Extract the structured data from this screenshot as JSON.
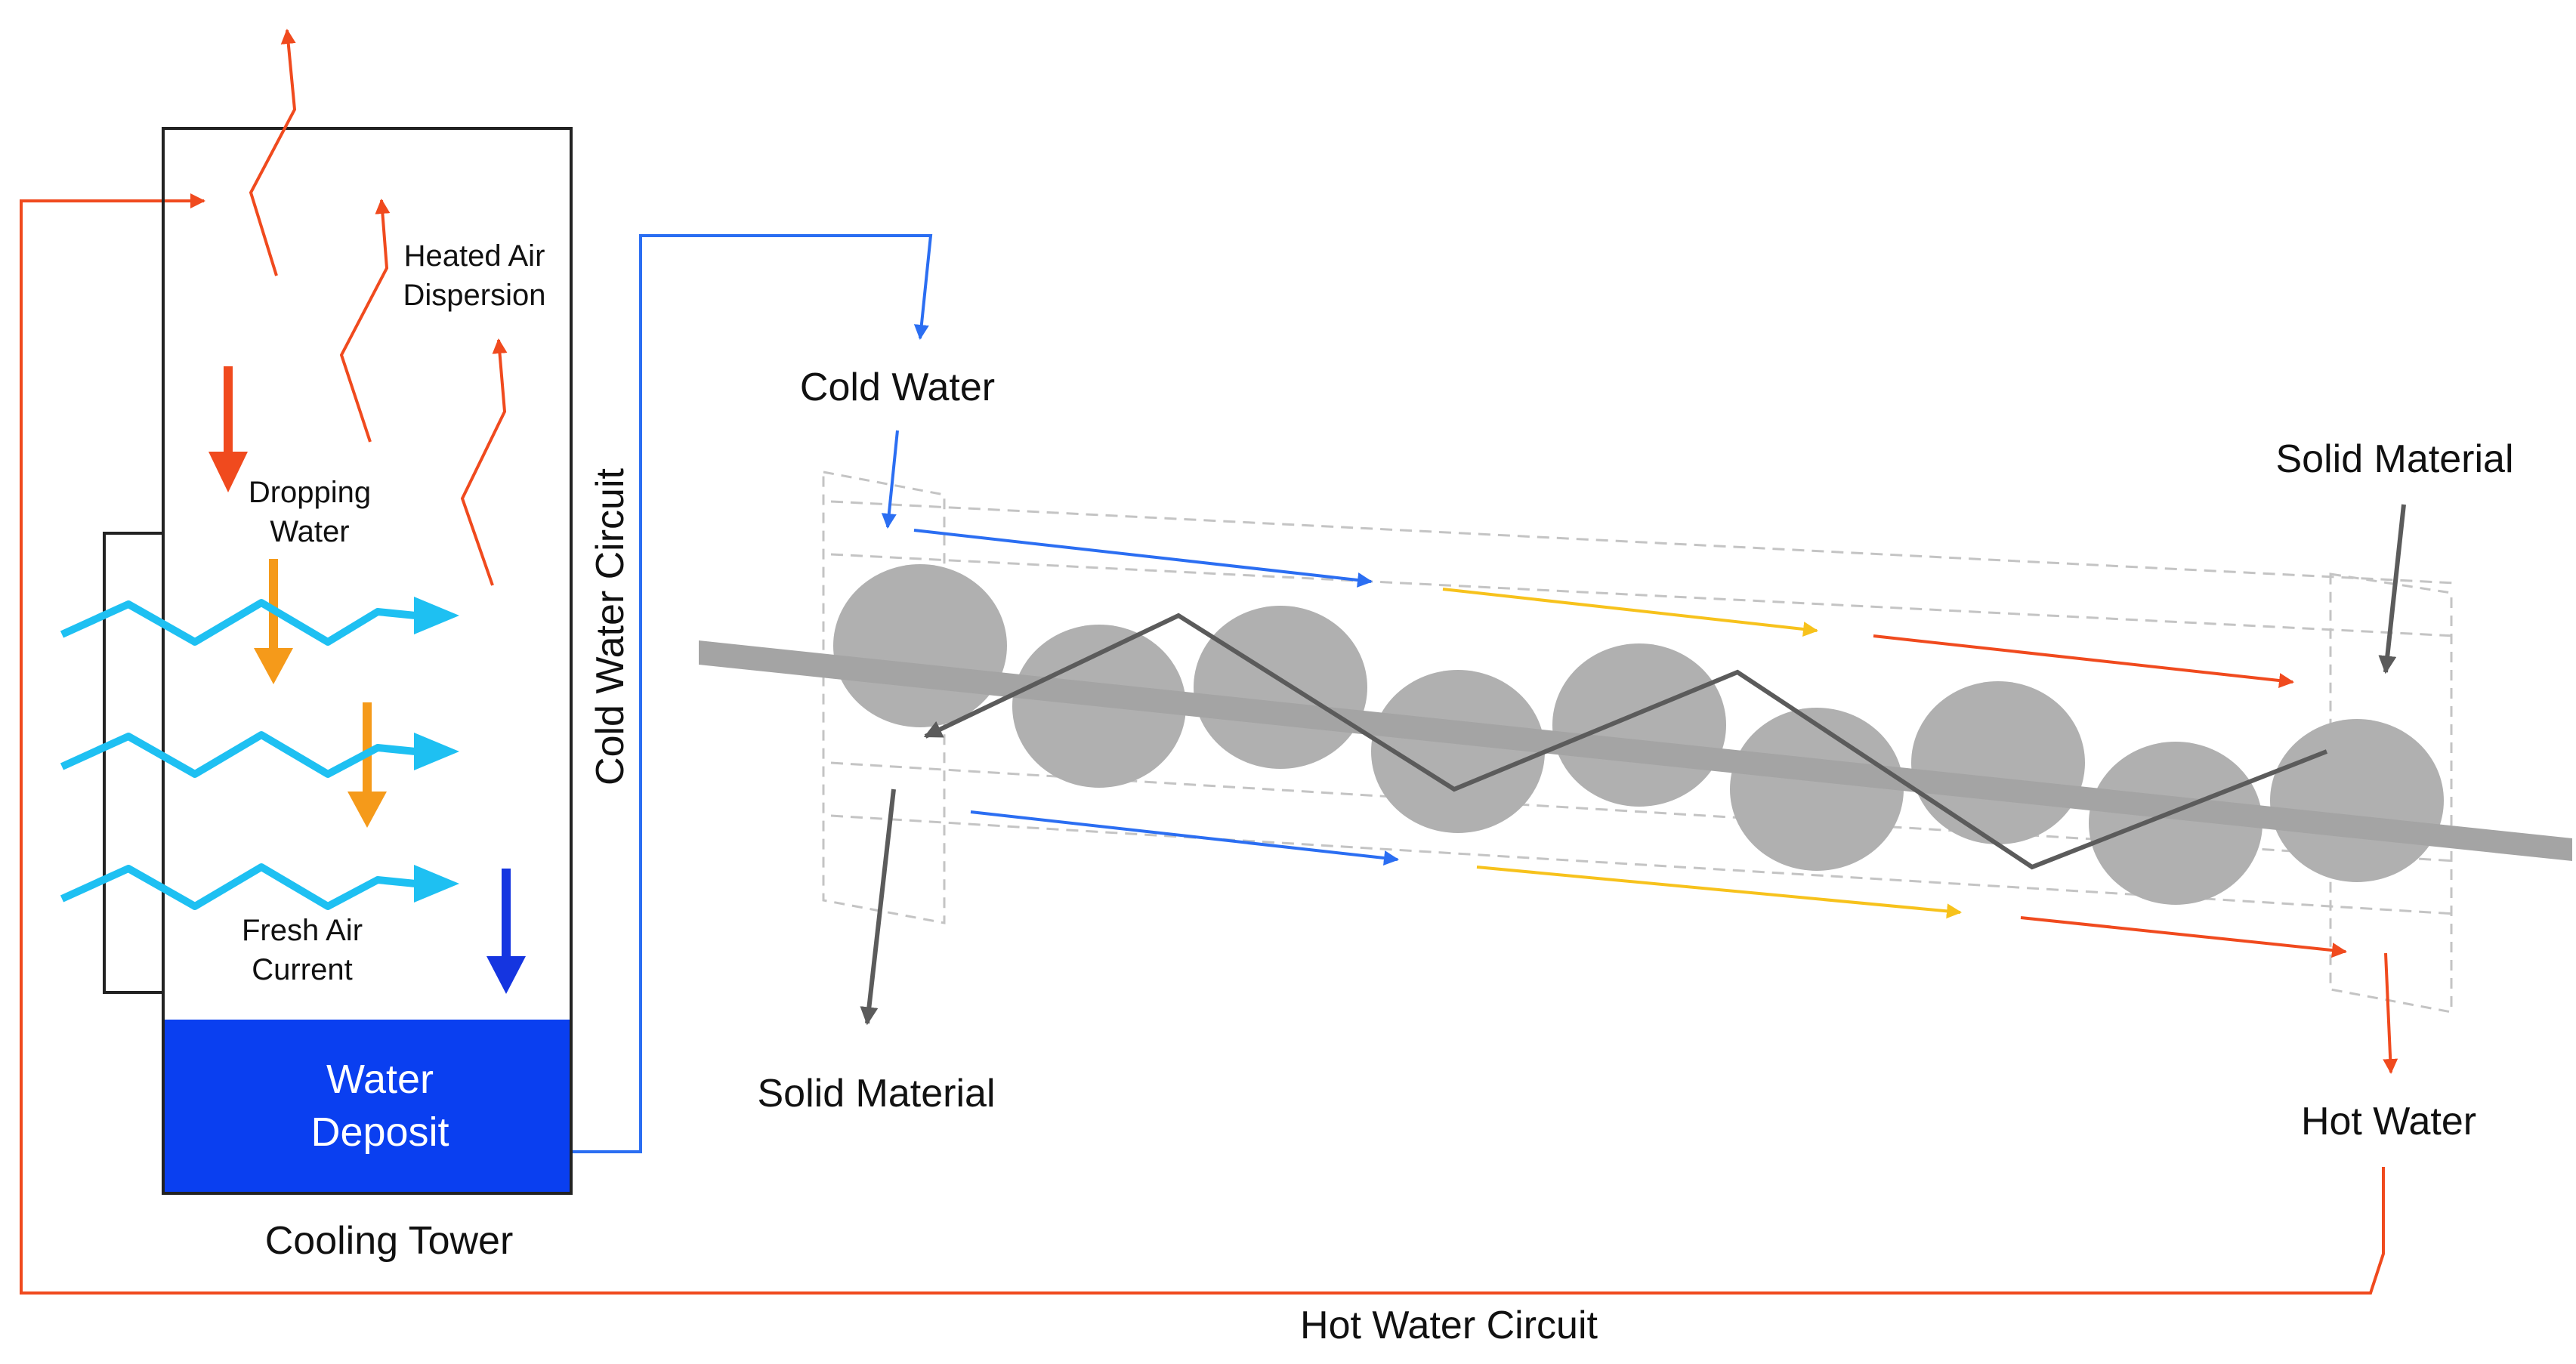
{
  "labels": {
    "heated_air_line1": "Heated Air",
    "heated_air_line2": "Dispersion",
    "dropping_water_line1": "Dropping",
    "dropping_water_line2": "Water",
    "fresh_air_line1": "Fresh Air",
    "fresh_air_line2": "Current",
    "water_deposit_line1": "Water",
    "water_deposit_line2": "Deposit",
    "cooling_tower": "Cooling Tower",
    "cold_water_circuit": "Cold Water Circuit",
    "cold_water": "Cold Water",
    "solid_material_in": "Solid Material",
    "solid_material_out": "Solid Material",
    "hot_water": "Hot Water",
    "hot_water_circuit": "Hot Water Circuit"
  },
  "colors": {
    "hot": "#f04a1e",
    "warm": "#f59a1a",
    "yellow": "#f7c21c",
    "cold": "#2b6ef2",
    "deep_blue": "#1535e0",
    "air": "#1ec0f2",
    "deposit": "#0a3ff0",
    "gray_lobe": "#b0b0b0",
    "shaft": "#a4a4a4",
    "dark_gray": "#5b5b5b"
  },
  "icons": {
    "flow_arrow": "arrow-icon",
    "air_current": "zigzag-arrow-icon",
    "heat": "wavy-line-icon"
  }
}
